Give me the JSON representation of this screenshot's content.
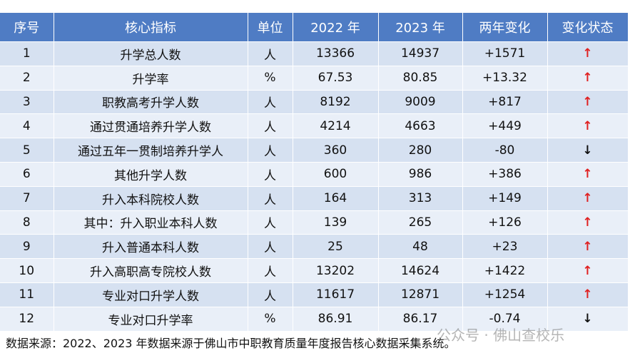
{
  "table": {
    "header": [
      "序号",
      "核心指标",
      "单位",
      "2022 年",
      "2023 年",
      "两年变化",
      "变化状态"
    ],
    "rows": [
      [
        "1",
        "升学总人数",
        "人",
        "13366",
        "14937",
        "+1571",
        "↑"
      ],
      [
        "2",
        "升学率",
        "%",
        "67.53",
        "80.85",
        "+13.32",
        "↑"
      ],
      [
        "3",
        "职教高考升学人数",
        "人",
        "8192",
        "9009",
        "+817",
        "↑"
      ],
      [
        "4",
        "通过贯通培养升学人数",
        "人",
        "4214",
        "4663",
        "+449",
        "↑"
      ],
      [
        "5",
        "通过五年一贯制培养升学人",
        "人",
        "360",
        "280",
        "-80",
        "↓"
      ],
      [
        "6",
        "其他升学人数",
        "人",
        "600",
        "986",
        "+386",
        "↑"
      ],
      [
        "7",
        "升入本科院校人数",
        "人",
        "164",
        "313",
        "+149",
        "↑"
      ],
      [
        "8",
        "其中：升入职业本科人数",
        "人",
        "139",
        "265",
        "+126",
        "↑"
      ],
      [
        "9",
        "升入普通本科人数",
        "人",
        "25",
        "48",
        "+23",
        "↑"
      ],
      [
        "10",
        "升入高职高专院校人数",
        "人",
        "13202",
        "14624",
        "+1422",
        "↑"
      ],
      [
        "11",
        "专业对口升学人数",
        "人",
        "11617",
        "12871",
        "+1254",
        "↑"
      ],
      [
        "12",
        "专业对口升学率",
        "%",
        "86.91",
        "86.17",
        "-0.74",
        "↓"
      ]
    ]
  },
  "footnote": "数据来源：2022、2023 年数据来源于佛山市中职教育质量年度报告核心数据采集系统。",
  "watermark": "公众号 · 佛山查校乐"
}
